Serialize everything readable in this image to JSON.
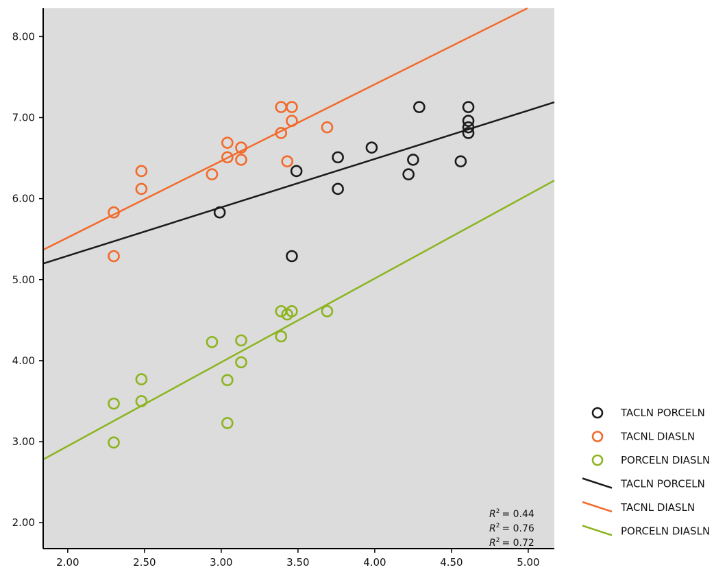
{
  "chart_data": {
    "type": "scatter",
    "xlim": [
      1.84,
      5.17
    ],
    "ylim": [
      1.68,
      8.35
    ],
    "xticks": [
      "2.00",
      "2.50",
      "3.00",
      "3.50",
      "4.00",
      "4.50",
      "5.00"
    ],
    "yticks": [
      "2.00",
      "3.00",
      "4.00",
      "5.00",
      "6.00",
      "7.00",
      "8.00"
    ],
    "background": "#dcdcdc",
    "grid": false,
    "legend_position": "right",
    "series": [
      {
        "name": "TACLN PORCELN",
        "color": "#1a1a1a",
        "points": [
          [
            2.99,
            5.83
          ],
          [
            3.46,
            5.29
          ],
          [
            3.49,
            6.34
          ],
          [
            3.76,
            6.51
          ],
          [
            3.76,
            6.12
          ],
          [
            3.98,
            6.63
          ],
          [
            4.22,
            6.3
          ],
          [
            4.25,
            6.48
          ],
          [
            4.29,
            7.13
          ],
          [
            4.56,
            6.46
          ],
          [
            4.61,
            7.13
          ],
          [
            4.61,
            6.96
          ],
          [
            4.61,
            6.88
          ],
          [
            4.61,
            6.81
          ]
        ],
        "fit": {
          "slope": 0.598,
          "intercept": 4.098
        }
      },
      {
        "name": "TACNL DIASLN",
        "color": "#f26a2a",
        "points": [
          [
            2.3,
            5.83
          ],
          [
            2.3,
            5.29
          ],
          [
            2.48,
            6.34
          ],
          [
            2.48,
            6.12
          ],
          [
            2.94,
            6.3
          ],
          [
            3.04,
            6.69
          ],
          [
            3.04,
            6.51
          ],
          [
            3.13,
            6.63
          ],
          [
            3.13,
            6.48
          ],
          [
            3.39,
            7.13
          ],
          [
            3.39,
            6.81
          ],
          [
            3.43,
            6.46
          ],
          [
            3.46,
            7.13
          ],
          [
            3.46,
            6.96
          ],
          [
            3.69,
            6.88
          ]
        ],
        "fit": {
          "slope": 0.945,
          "intercept": 3.63
        }
      },
      {
        "name": "PORCELN DIASLN",
        "color": "#8cb41e",
        "points": [
          [
            2.3,
            3.47
          ],
          [
            2.3,
            2.99
          ],
          [
            2.48,
            3.77
          ],
          [
            2.48,
            3.5
          ],
          [
            2.94,
            4.23
          ],
          [
            3.04,
            3.76
          ],
          [
            3.04,
            3.23
          ],
          [
            3.13,
            4.25
          ],
          [
            3.13,
            3.98
          ],
          [
            3.39,
            4.61
          ],
          [
            3.39,
            4.3
          ],
          [
            3.43,
            4.57
          ],
          [
            3.46,
            4.61
          ],
          [
            3.69,
            4.61
          ]
        ],
        "fit": {
          "slope": 1.034,
          "intercept": 0.878
        }
      }
    ],
    "annotations": [
      "= 0.44",
      "= 0.76",
      "= 0.72"
    ],
    "r2_symbol": "R",
    "r2_exponent": "2"
  }
}
